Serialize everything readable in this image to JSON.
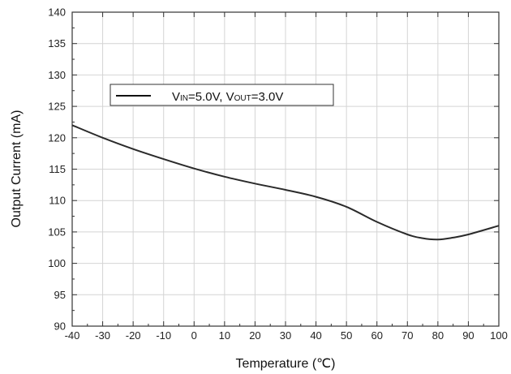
{
  "chart_data": {
    "type": "line",
    "xlabel": "Temperature (℃)",
    "ylabel": "Output Current (mA)",
    "xlim": [
      -40,
      100
    ],
    "ylim": [
      90,
      140
    ],
    "x_ticks": [
      -40,
      -30,
      -20,
      -10,
      0,
      10,
      20,
      30,
      40,
      50,
      60,
      70,
      80,
      90,
      100
    ],
    "y_ticks": [
      90,
      95,
      100,
      105,
      110,
      115,
      120,
      125,
      130,
      135,
      140
    ],
    "grid": true,
    "legend_position": "upper-left",
    "legend": {
      "v1_main": "V",
      "v1_sub": "IN",
      "v1_rest": "=5.0V, ",
      "v2_main": "V",
      "v2_sub": "OUT",
      "v2_rest": "=3.0V"
    },
    "series": [
      {
        "x": [
          -40,
          -30,
          -20,
          -10,
          0,
          10,
          20,
          30,
          40,
          50,
          60,
          70,
          75,
          80,
          85,
          90,
          100
        ],
        "y": [
          122.0,
          120.0,
          118.2,
          116.6,
          115.1,
          113.8,
          112.7,
          111.7,
          110.6,
          109.0,
          106.6,
          104.6,
          104.0,
          103.8,
          104.1,
          104.6,
          106.0
        ]
      }
    ]
  }
}
